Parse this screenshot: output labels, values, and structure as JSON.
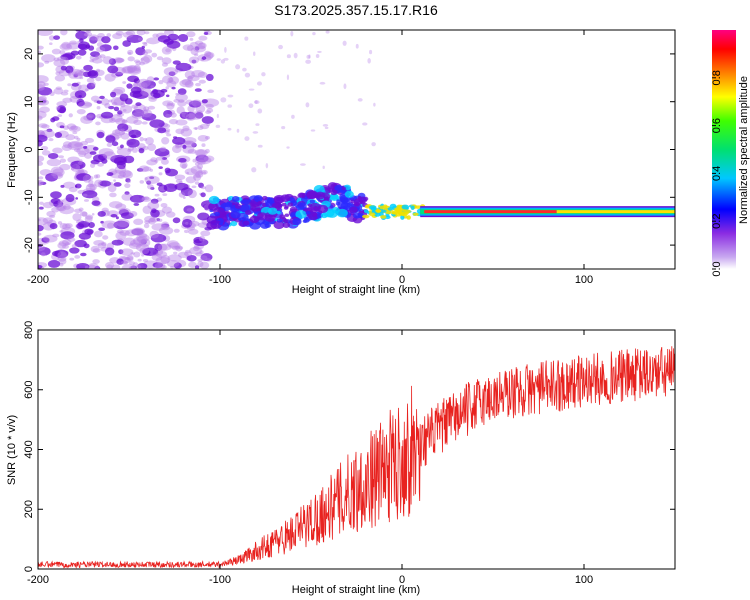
{
  "title": "S173.2025.357.15.17.R16",
  "chart_data": [
    {
      "type": "heatmap",
      "name": "spectrogram",
      "xlabel": "Height of straight line (km)",
      "ylabel": "Frequency (Hz)",
      "xlim": [
        -200,
        150
      ],
      "ylim": [
        -25,
        25
      ],
      "xticks": [
        "-200",
        "-100",
        "0",
        "100"
      ],
      "yticks": [
        "-20",
        "-10",
        "0",
        "10",
        "20"
      ],
      "colorbar": {
        "label": "Normalized spectral amplitude",
        "range": [
          0,
          1
        ],
        "ticks": [
          "0.0",
          "0.2",
          "0.4",
          "0.6",
          "0.8"
        ]
      },
      "features": [
        {
          "x_range": [
            -200,
            -105
          ],
          "freq_range": [
            -25,
            25
          ],
          "amplitude": 0.1,
          "note": "broadband noise"
        },
        {
          "x_range": [
            -105,
            -20
          ],
          "freq_range": [
            -17,
            -5
          ],
          "amplitude": 0.3,
          "note": "scattered signal rising with height"
        },
        {
          "x_range": [
            10,
            150
          ],
          "freq": -13,
          "amplitude": 0.95,
          "note": "strong narrow carrier"
        }
      ],
      "colors": {
        "noise": "#b57ee8",
        "low": "#6a0dd6",
        "mid": "#00d0ff",
        "high": "#ff2a2a"
      }
    },
    {
      "type": "line",
      "name": "snr",
      "xlabel": "Height of straight line (km)",
      "ylabel": "SNR (10 * v/v)",
      "xlim": [
        -200,
        150
      ],
      "ylim": [
        0,
        800
      ],
      "xticks": [
        "-200",
        "-100",
        "0",
        "100"
      ],
      "yticks": [
        "0",
        "200",
        "400",
        "600",
        "800"
      ],
      "color": "#e8221f",
      "series_profile": {
        "x": [
          -200,
          -100,
          -90,
          -80,
          -70,
          -60,
          -50,
          -40,
          -30,
          -20,
          -10,
          0,
          10,
          20,
          30,
          40,
          50,
          60,
          80,
          100,
          120,
          150
        ],
        "values": [
          15,
          15,
          30,
          60,
          90,
          120,
          160,
          200,
          250,
          290,
          330,
          370,
          420,
          470,
          510,
          550,
          575,
          590,
          610,
          630,
          645,
          660
        ]
      }
    }
  ]
}
